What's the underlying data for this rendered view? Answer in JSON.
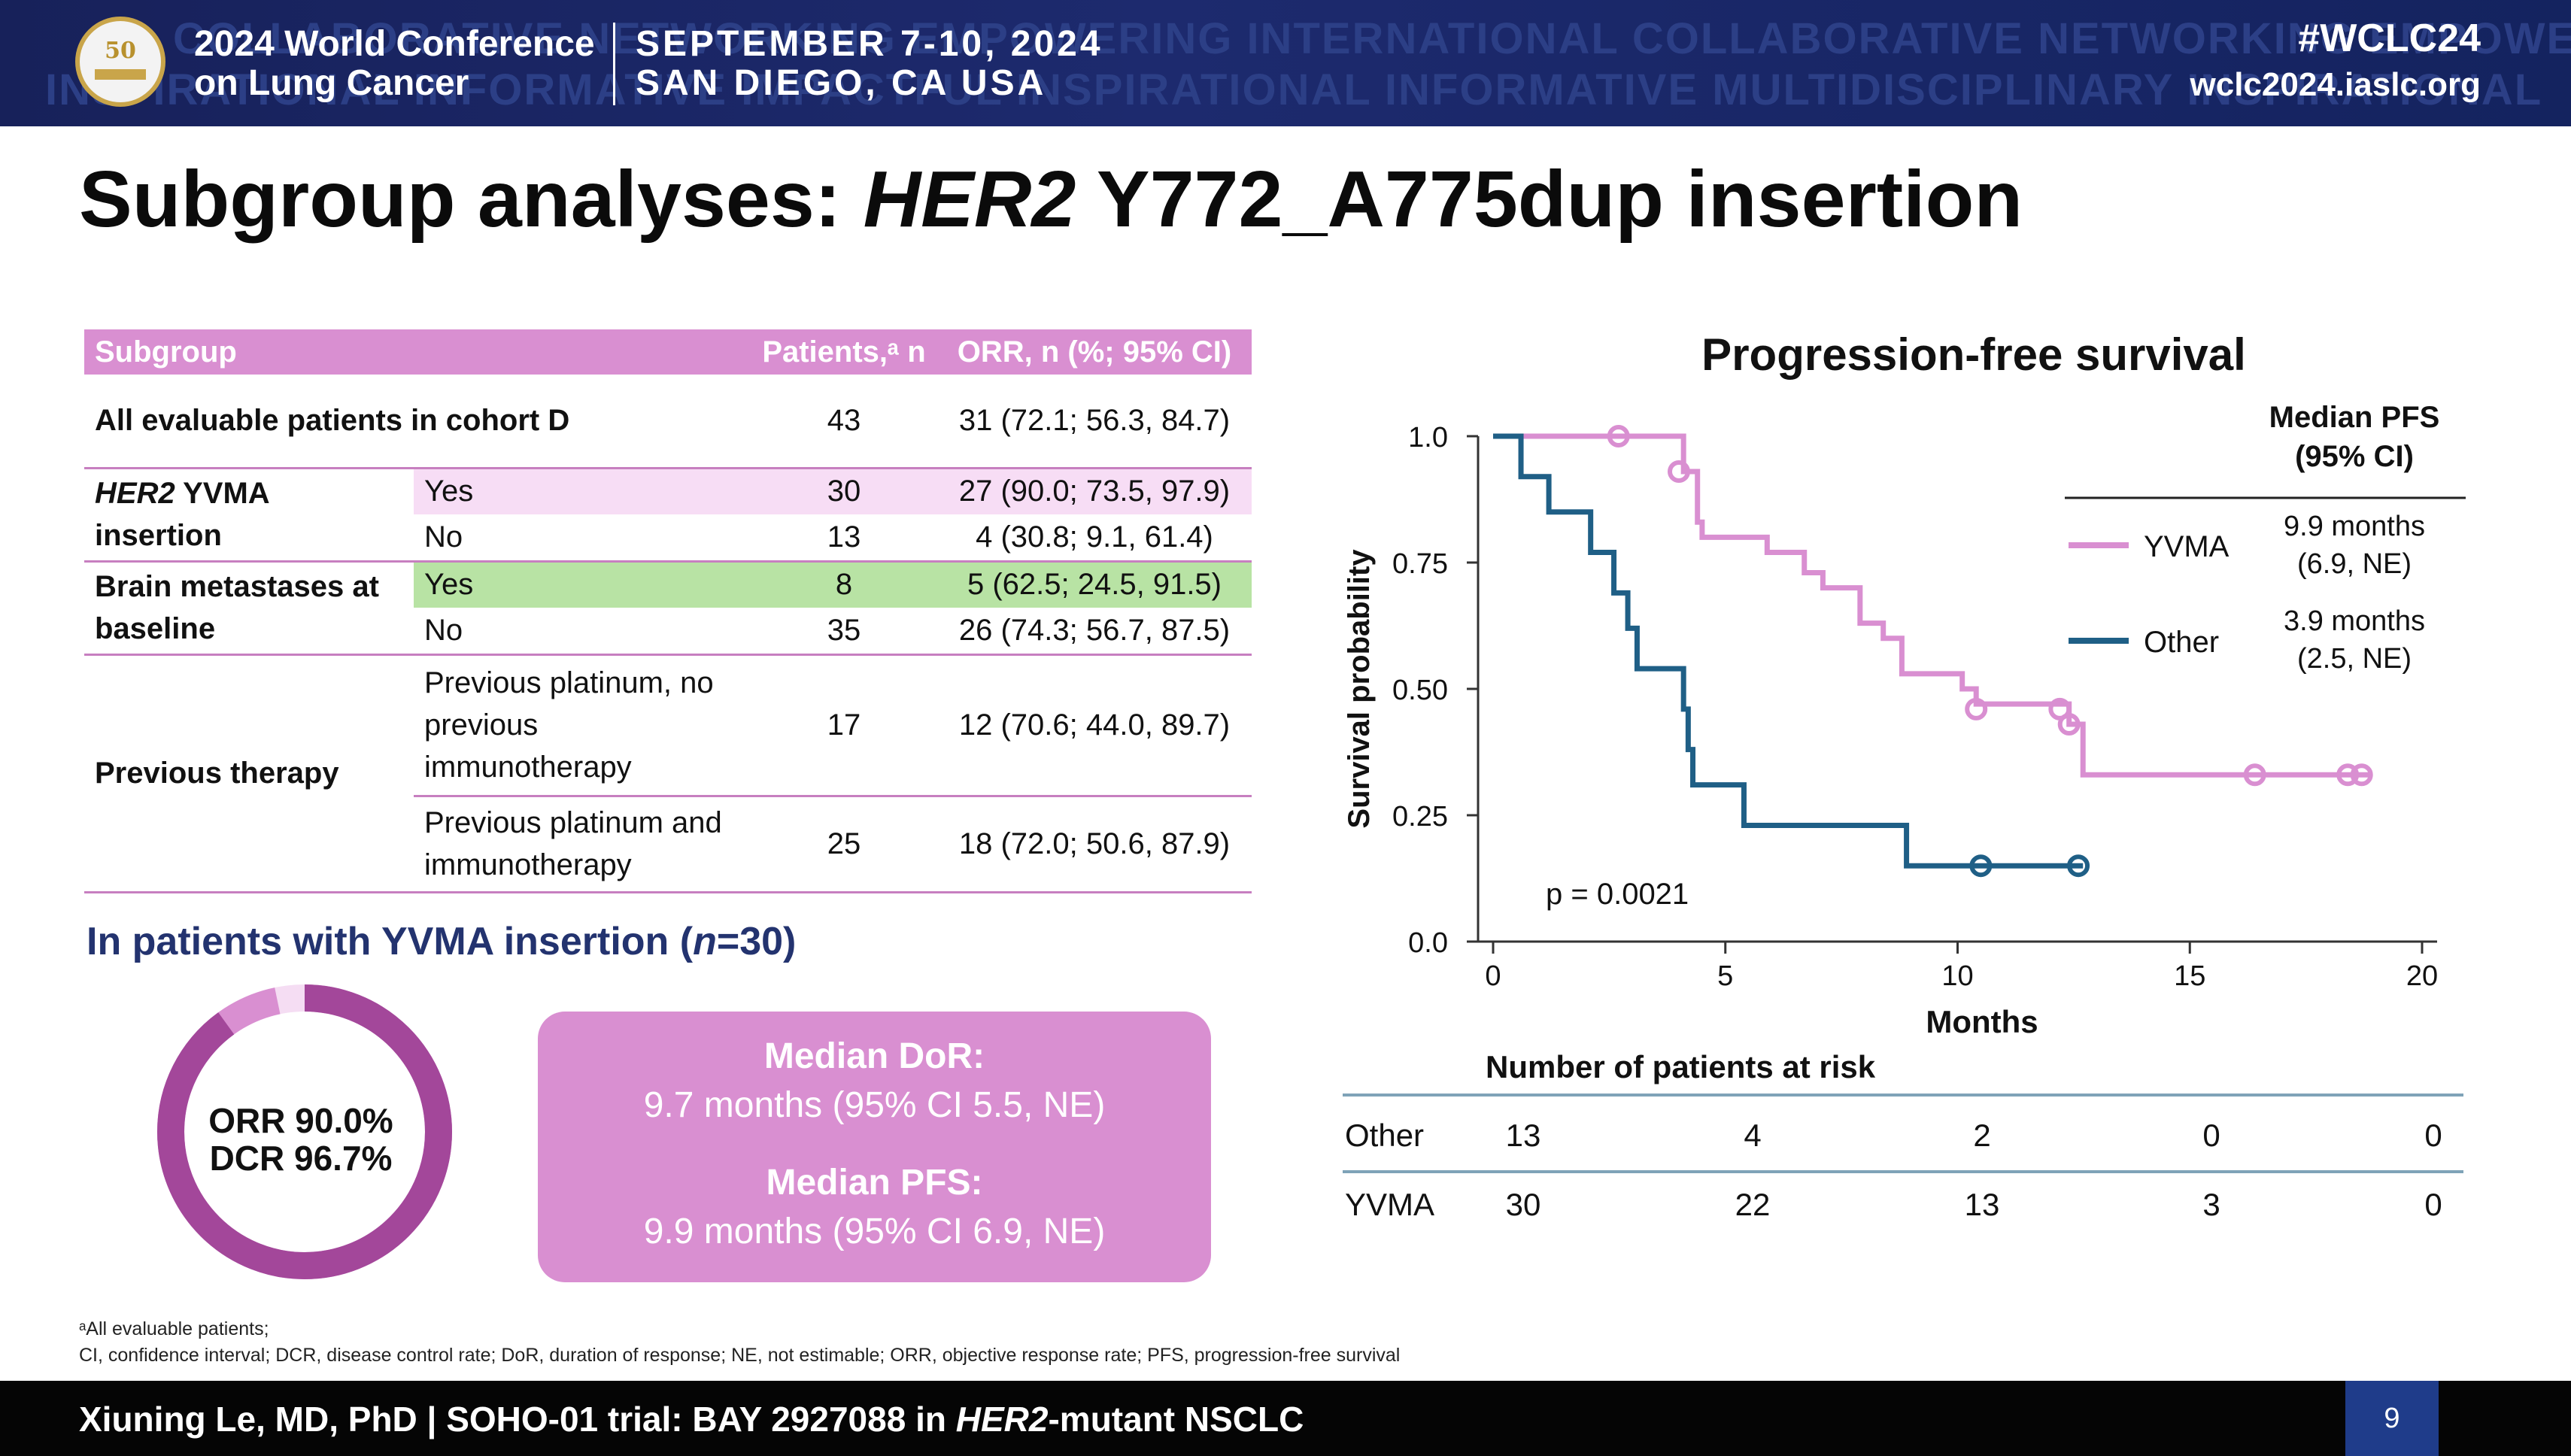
{
  "banner": {
    "logo_text": "50",
    "conf_line1": "2024 World Conference",
    "conf_line2": "on Lung Cancer",
    "date": "SEPTEMBER 7-10, 2024",
    "location": "SAN DIEGO, CA USA",
    "hashtag": "#WCLC24",
    "url": "wclc2024.iaslc.org",
    "bg_words_row1": "COLLABORATIVE NETWORKING EMPOWERING INTERNATIONAL COLLABORATIVE NETWORKING EMPOWERING",
    "bg_words_row2": "INSPIRATIONAL INFORMATIVE IMPACTFUL INSPIRATIONAL INFORMATIVE MULTIDISCIPLINARY INSPIRATIONAL"
  },
  "title": {
    "prefix": "Subgroup analyses: ",
    "gene": "HER2",
    "suffix": " Y772_A775dup insertion"
  },
  "table": {
    "headers": {
      "subgroup": "Subgroup",
      "patients": "Patients,ᵃ n",
      "orr": "ORR, n (%; 95% CI)"
    },
    "rows": [
      {
        "group": "All evaluable patients in cohort D",
        "sub": "",
        "n": "43",
        "orr": "31 (72.1; 56.3, 84.7)"
      },
      {
        "group": "HER2 YVMA insertion",
        "sub": "Yes",
        "n": "30",
        "orr": "27 (90.0; 73.5, 97.9)"
      },
      {
        "group": "",
        "sub": "No",
        "n": "13",
        "orr": "4 (30.8; 9.1, 61.4)"
      },
      {
        "group": "Brain metastases at baseline",
        "sub": "Yes",
        "n": "8",
        "orr": "5 (62.5; 24.5, 91.5)"
      },
      {
        "group": "",
        "sub": "No",
        "n": "35",
        "orr": "26 (74.3; 56.7, 87.5)"
      },
      {
        "group": "Previous therapy",
        "sub": "Previous platinum, no previous immunotherapy",
        "n": "17",
        "orr": "12 (70.6; 44.0, 89.7)"
      },
      {
        "group": "",
        "sub": "Previous platinum and immunotherapy",
        "n": "25",
        "orr": "18 (72.0; 50.6, 87.9)"
      }
    ],
    "her2_italic": "HER2",
    "her2_rest": " YVMA insertion"
  },
  "yvma": {
    "heading_prefix": "In patients with YVMA insertion (",
    "heading_n": "n",
    "heading_suffix": "=30)",
    "orr_label": "ORR 90.0%",
    "dcr_label": "DCR 96.7%",
    "donut_fractions": {
      "orr": 0.9,
      "dcr_extra": 0.067,
      "rest": 0.033
    },
    "median_dor_label": "Median DoR:",
    "median_dor_value": "9.7 months (95% CI 5.5, NE)",
    "median_pfs_label": "Median PFS:",
    "median_pfs_value": "9.9 months (95% CI 6.9, NE)"
  },
  "footnote": {
    "line1": "ᵃAll evaluable patients;",
    "line2": "CI, confidence interval; DCR, disease control rate; DoR, duration of response; NE, not estimable; ORR, objective response rate; PFS, progression-free survival"
  },
  "footer": {
    "text_pre": "Xiuning Le, MD, PhD | SOHO-01 trial: BAY 2927088 in ",
    "text_gene": "HER2",
    "text_post": "-mutant NSCLC",
    "page": "9"
  },
  "colors": {
    "pink": "#d98fd1",
    "purple": "#a3479a",
    "blue": "#1f5f86",
    "navy": "#1d2a6e"
  },
  "chart_data": {
    "type": "line",
    "title": "Progression-free survival",
    "xlabel": "Months",
    "ylabel": "Survival probability",
    "xlim": [
      0,
      20
    ],
    "ylim": [
      0,
      1
    ],
    "x_ticks": [
      "0",
      "5",
      "10",
      "15",
      "20"
    ],
    "y_ticks": [
      "0.0",
      "0.25",
      "0.50",
      "0.75",
      "1.0"
    ],
    "annotation": "p = 0.0021",
    "legend_title": "Median PFS (95% CI)",
    "series": [
      {
        "name": "YVMA",
        "median": "9.9 months",
        "ci": "(6.9, NE)",
        "color": "#d98fd1",
        "steps": [
          [
            0,
            1.0
          ],
          [
            4.0,
            1.0
          ],
          [
            4.1,
            0.93
          ],
          [
            4.4,
            0.83
          ],
          [
            4.5,
            0.8
          ],
          [
            5.8,
            0.8
          ],
          [
            5.9,
            0.77
          ],
          [
            6.6,
            0.77
          ],
          [
            6.7,
            0.73
          ],
          [
            7.0,
            0.73
          ],
          [
            7.1,
            0.7
          ],
          [
            7.8,
            0.7
          ],
          [
            7.9,
            0.63
          ],
          [
            8.3,
            0.63
          ],
          [
            8.4,
            0.6
          ],
          [
            8.7,
            0.6
          ],
          [
            8.8,
            0.53
          ],
          [
            10.0,
            0.53
          ],
          [
            10.1,
            0.5
          ],
          [
            10.3,
            0.5
          ],
          [
            10.4,
            0.47
          ],
          [
            12.3,
            0.47
          ],
          [
            12.4,
            0.43
          ],
          [
            12.6,
            0.43
          ],
          [
            12.7,
            0.33
          ],
          [
            18.9,
            0.33
          ]
        ],
        "censored": [
          [
            2.7,
            1.0
          ],
          [
            4.0,
            0.93
          ],
          [
            10.4,
            0.46
          ],
          [
            12.2,
            0.46
          ],
          [
            12.4,
            0.43
          ],
          [
            16.4,
            0.33
          ],
          [
            18.4,
            0.33
          ],
          [
            18.7,
            0.33
          ]
        ]
      },
      {
        "name": "Other",
        "median": "3.9 months",
        "ci": "(2.5, NE)",
        "color": "#1f5f86",
        "steps": [
          [
            0,
            1.0
          ],
          [
            0.5,
            1.0
          ],
          [
            0.6,
            0.92
          ],
          [
            1.1,
            0.92
          ],
          [
            1.2,
            0.85
          ],
          [
            2.0,
            0.85
          ],
          [
            2.1,
            0.77
          ],
          [
            2.5,
            0.77
          ],
          [
            2.6,
            0.69
          ],
          [
            2.8,
            0.69
          ],
          [
            2.9,
            0.62
          ],
          [
            3.0,
            0.62
          ],
          [
            3.1,
            0.54
          ],
          [
            4.0,
            0.54
          ],
          [
            4.1,
            0.46
          ],
          [
            4.2,
            0.38
          ],
          [
            4.3,
            0.31
          ],
          [
            5.3,
            0.31
          ],
          [
            5.4,
            0.23
          ],
          [
            8.8,
            0.23
          ],
          [
            8.9,
            0.15
          ],
          [
            12.7,
            0.15
          ]
        ],
        "censored": [
          [
            10.5,
            0.15
          ],
          [
            12.6,
            0.15
          ]
        ]
      }
    ],
    "risk_table": {
      "title": "Number of patients at risk",
      "rows": [
        {
          "label": "Other",
          "values": [
            "13",
            "4",
            "2",
            "0",
            "0"
          ]
        },
        {
          "label": "YVMA",
          "values": [
            "30",
            "22",
            "13",
            "3",
            "0"
          ]
        }
      ]
    }
  }
}
